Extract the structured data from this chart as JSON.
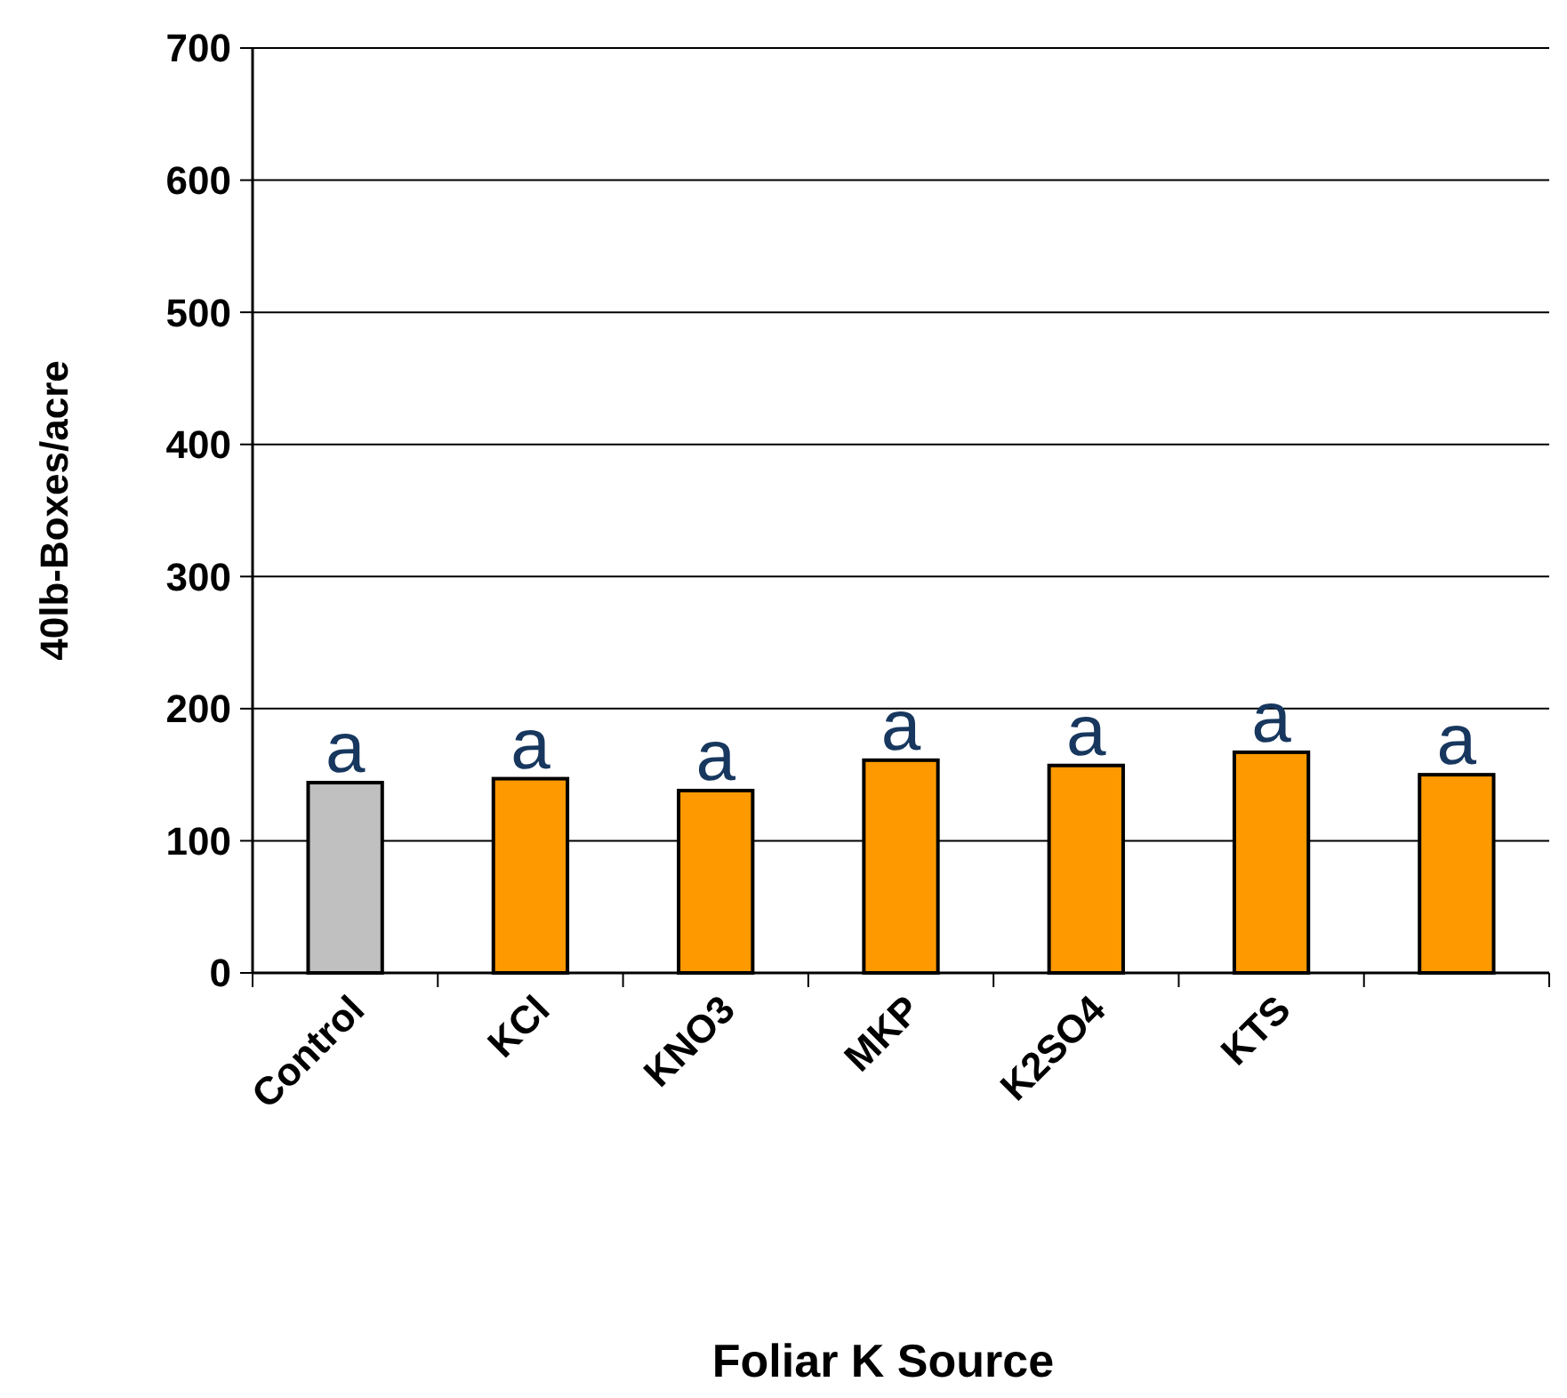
{
  "chart_data": {
    "type": "bar",
    "xlabel": "Foliar K Source",
    "ylabel": "40lb-Boxes/acre",
    "categories": [
      "Control",
      "KCl",
      "KNO3",
      "MKP",
      "K2SO4",
      "KTS",
      null
    ],
    "values": [
      144,
      147,
      138,
      161,
      157,
      167,
      150
    ],
    "colors": [
      "#c0c0c0",
      "#ff9900",
      "#ff9900",
      "#ff9900",
      "#ff9900",
      "#ff9900",
      "#ff9900"
    ],
    "value_labels": [
      "a",
      "a",
      "a",
      "a",
      "a",
      "a",
      "a"
    ],
    "ylim": [
      0,
      700
    ],
    "yticks": [
      0,
      100,
      200,
      300,
      400,
      500,
      600,
      700
    ],
    "grid": "y"
  }
}
